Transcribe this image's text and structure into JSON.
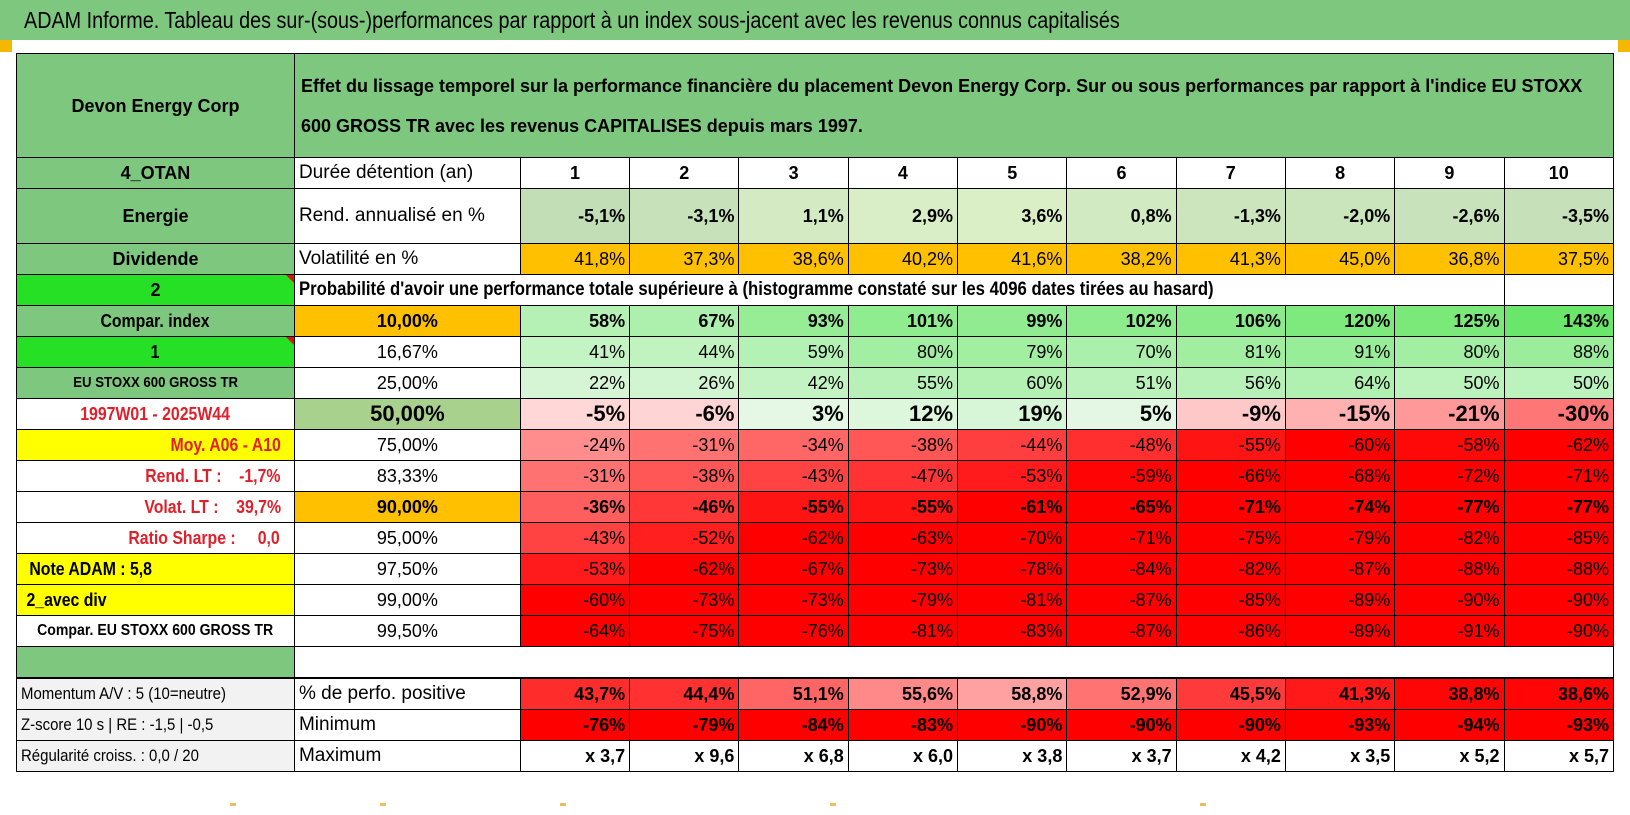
{
  "title": "ADAM Informe. Tableau des sur-(sous-)performances par rapport à un index sous-jacent avec les revenus connus capitalisés",
  "company": "Devon Energy Corp",
  "description": "Effet du lissage temporel sur la performance financière du placement Devon Energy Corp. Sur ou sous performances par rapport à l'indice EU STOXX 600 GROSS TR avec les revenus CAPITALISES depuis mars 1997.",
  "colors": {
    "header_green": "#7ec77e",
    "bright_green": "#26e026",
    "yellow": "#ffff00",
    "orange": "#ffc000",
    "red": "#ff0000",
    "red_text": "#e0202a"
  },
  "years": [
    "1",
    "2",
    "3",
    "4",
    "5",
    "6",
    "7",
    "8",
    "9",
    "10"
  ],
  "left": {
    "otan": "4_OTAN",
    "sector": "Energie",
    "dividende": "Dividende",
    "two": "2",
    "compar_index": "Compar. index",
    "one": "1",
    "index_name": "EU STOXX 600 GROSS TR",
    "period": "1997W01 - 2025W44",
    "moy": "Moy. A06 - A10",
    "rend_lt": "Rend. LT :    -1,7%",
    "volat_lt": "Volat. LT :    39,7%",
    "sharpe": "Ratio Sharpe :     0,0",
    "note": "Note ADAM : 5,8",
    "avec_div": "2_avec div",
    "compar_full": "Compar. EU STOXX 600 GROSS TR",
    "momentum": "Momentum A/V : 5 (10=neutre)",
    "zscore": "Z-score 10 s | RE : -1,5 | -0,5",
    "regularite": "Régularité croiss. : 0,0 / 20"
  },
  "labels": {
    "duree": "Durée détention (an)",
    "rend": "Rend. annualisé en %",
    "volat": "Volatilité en %",
    "proba": "Probabilité d'avoir une performance totale supérieure à (histogramme constaté sur les 4096 dates tirées au hasard)",
    "perf_pos": "% de perfo. positive",
    "minimum": "Minimum",
    "maximum": "Maximum"
  },
  "rend_row": [
    "-5,1%",
    "-3,1%",
    "1,1%",
    "2,9%",
    "3,6%",
    "0,8%",
    "-1,3%",
    "-2,0%",
    "-2,6%",
    "-3,5%"
  ],
  "volat_row": [
    "41,8%",
    "37,3%",
    "38,6%",
    "40,2%",
    "41,6%",
    "38,2%",
    "41,3%",
    "45,0%",
    "36,8%",
    "37,5%"
  ],
  "quantile_rows": [
    {
      "q": "10,00%",
      "values": [
        "58%",
        "67%",
        "93%",
        "101%",
        "99%",
        "102%",
        "106%",
        "120%",
        "125%",
        "143%"
      ]
    },
    {
      "q": "16,67%",
      "values": [
        "41%",
        "44%",
        "59%",
        "80%",
        "79%",
        "70%",
        "81%",
        "91%",
        "80%",
        "88%"
      ]
    },
    {
      "q": "25,00%",
      "values": [
        "22%",
        "26%",
        "42%",
        "55%",
        "60%",
        "51%",
        "56%",
        "64%",
        "50%",
        "50%"
      ]
    },
    {
      "q": "50,00%",
      "values": [
        "-5%",
        "-6%",
        "3%",
        "12%",
        "19%",
        "5%",
        "-9%",
        "-15%",
        "-21%",
        "-30%"
      ]
    },
    {
      "q": "75,00%",
      "values": [
        "-24%",
        "-31%",
        "-34%",
        "-38%",
        "-44%",
        "-48%",
        "-55%",
        "-60%",
        "-58%",
        "-62%"
      ]
    },
    {
      "q": "83,33%",
      "values": [
        "-31%",
        "-38%",
        "-43%",
        "-47%",
        "-53%",
        "-59%",
        "-66%",
        "-68%",
        "-72%",
        "-71%"
      ]
    },
    {
      "q": "90,00%",
      "values": [
        "-36%",
        "-46%",
        "-55%",
        "-55%",
        "-61%",
        "-65%",
        "-71%",
        "-74%",
        "-77%",
        "-77%"
      ]
    },
    {
      "q": "95,00%",
      "values": [
        "-43%",
        "-52%",
        "-62%",
        "-63%",
        "-70%",
        "-71%",
        "-75%",
        "-79%",
        "-82%",
        "-85%"
      ]
    },
    {
      "q": "97,50%",
      "values": [
        "-53%",
        "-62%",
        "-67%",
        "-73%",
        "-78%",
        "-84%",
        "-82%",
        "-87%",
        "-88%",
        "-88%"
      ]
    },
    {
      "q": "99,00%",
      "values": [
        "-60%",
        "-73%",
        "-73%",
        "-79%",
        "-81%",
        "-87%",
        "-85%",
        "-89%",
        "-90%",
        "-90%"
      ]
    },
    {
      "q": "99,50%",
      "values": [
        "-64%",
        "-75%",
        "-76%",
        "-81%",
        "-83%",
        "-87%",
        "-86%",
        "-89%",
        "-91%",
        "-90%"
      ]
    }
  ],
  "perf_pos_row": [
    "43,7%",
    "44,4%",
    "51,1%",
    "55,6%",
    "58,8%",
    "52,9%",
    "45,5%",
    "41,3%",
    "38,8%",
    "38,6%"
  ],
  "min_row": [
    "-76%",
    "-79%",
    "-84%",
    "-83%",
    "-90%",
    "-90%",
    "-90%",
    "-93%",
    "-94%",
    "-93%"
  ],
  "max_row": [
    "x 3,7",
    "x 9,6",
    "x 6,8",
    "x 6,0",
    "x 3,8",
    "x 3,7",
    "x 4,2",
    "x 3,5",
    "x 5,2",
    "x 5,7"
  ]
}
